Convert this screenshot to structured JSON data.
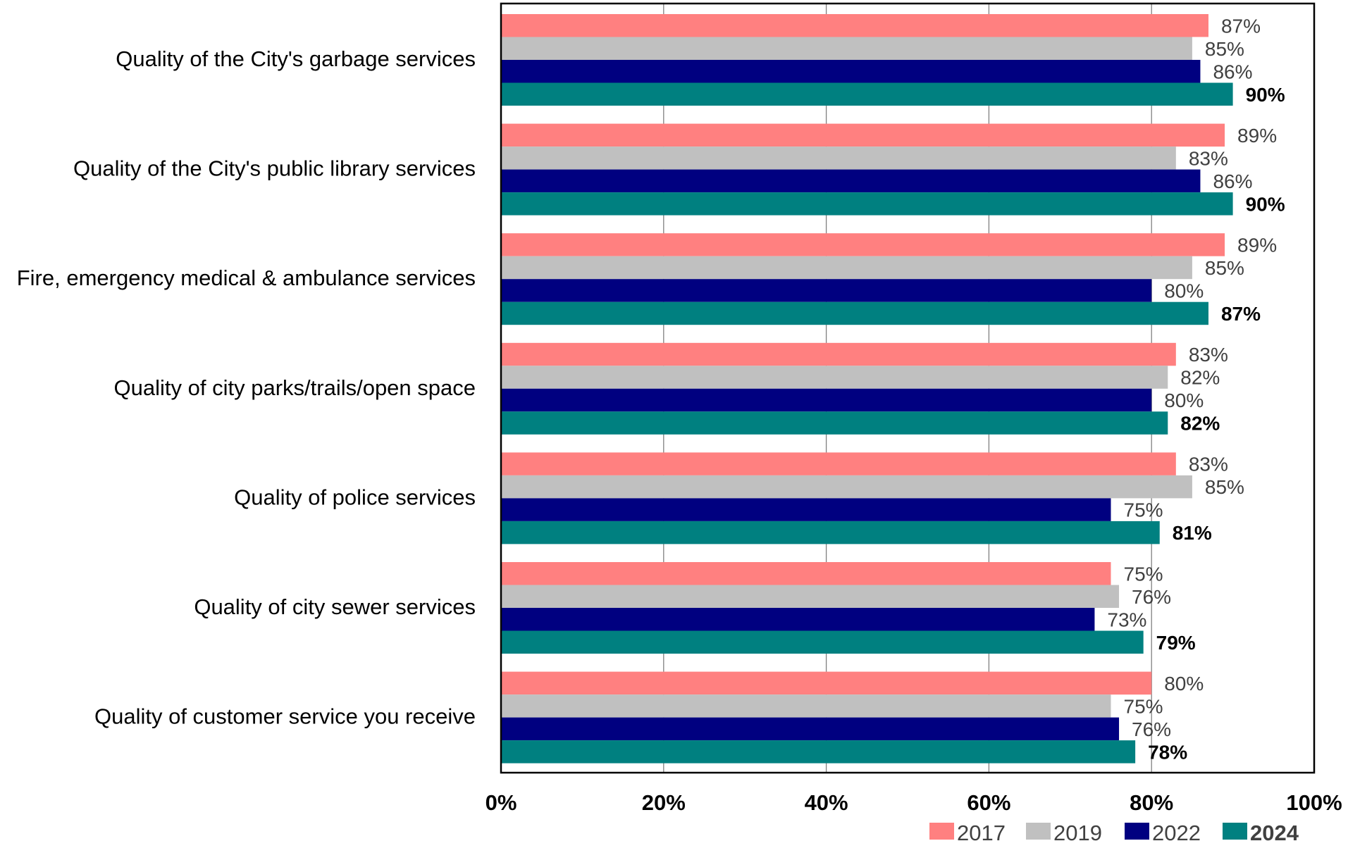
{
  "chart_data": {
    "type": "bar",
    "orientation": "horizontal",
    "categories": [
      "Quality of the City's garbage services",
      "Quality of the City's public library services",
      "Fire, emergency medical & ambulance services",
      "Quality of city parks/trails/open space",
      "Quality of police services",
      "Quality of city sewer services",
      "Quality of customer service you receive"
    ],
    "series": [
      {
        "name": "2017",
        "color": "#FF8080",
        "bold": false,
        "values": [
          87,
          89,
          89,
          83,
          83,
          75,
          80
        ],
        "labels": [
          "87%",
          "89%",
          "89%",
          "83%",
          "83%",
          "75%",
          "80%"
        ]
      },
      {
        "name": "2019",
        "color": "#C0C0C0",
        "bold": false,
        "values": [
          85,
          83,
          85,
          82,
          85,
          76,
          75
        ],
        "labels": [
          "85%",
          "83%",
          "85%",
          "82%",
          "85%",
          "76%",
          "75%"
        ]
      },
      {
        "name": "2022",
        "color": "#000080",
        "bold": false,
        "values": [
          86,
          86,
          80,
          80,
          75,
          73,
          76
        ],
        "labels": [
          "86%",
          "86%",
          "80%",
          "80%",
          "75%",
          "73%",
          "76%"
        ]
      },
      {
        "name": "2024",
        "color": "#008080",
        "bold": true,
        "values": [
          90,
          90,
          87,
          82,
          81,
          79,
          78
        ],
        "labels": [
          "90%",
          "90%",
          "87%",
          "82%",
          "81%",
          "79%",
          "78%"
        ]
      }
    ],
    "xlim": [
      0,
      100
    ],
    "x_ticks": [
      "0%",
      "20%",
      "40%",
      "60%",
      "80%",
      "100%"
    ],
    "grid": "vertical",
    "legend_position": "bottom-right",
    "title": "",
    "xlabel": "",
    "ylabel": ""
  }
}
